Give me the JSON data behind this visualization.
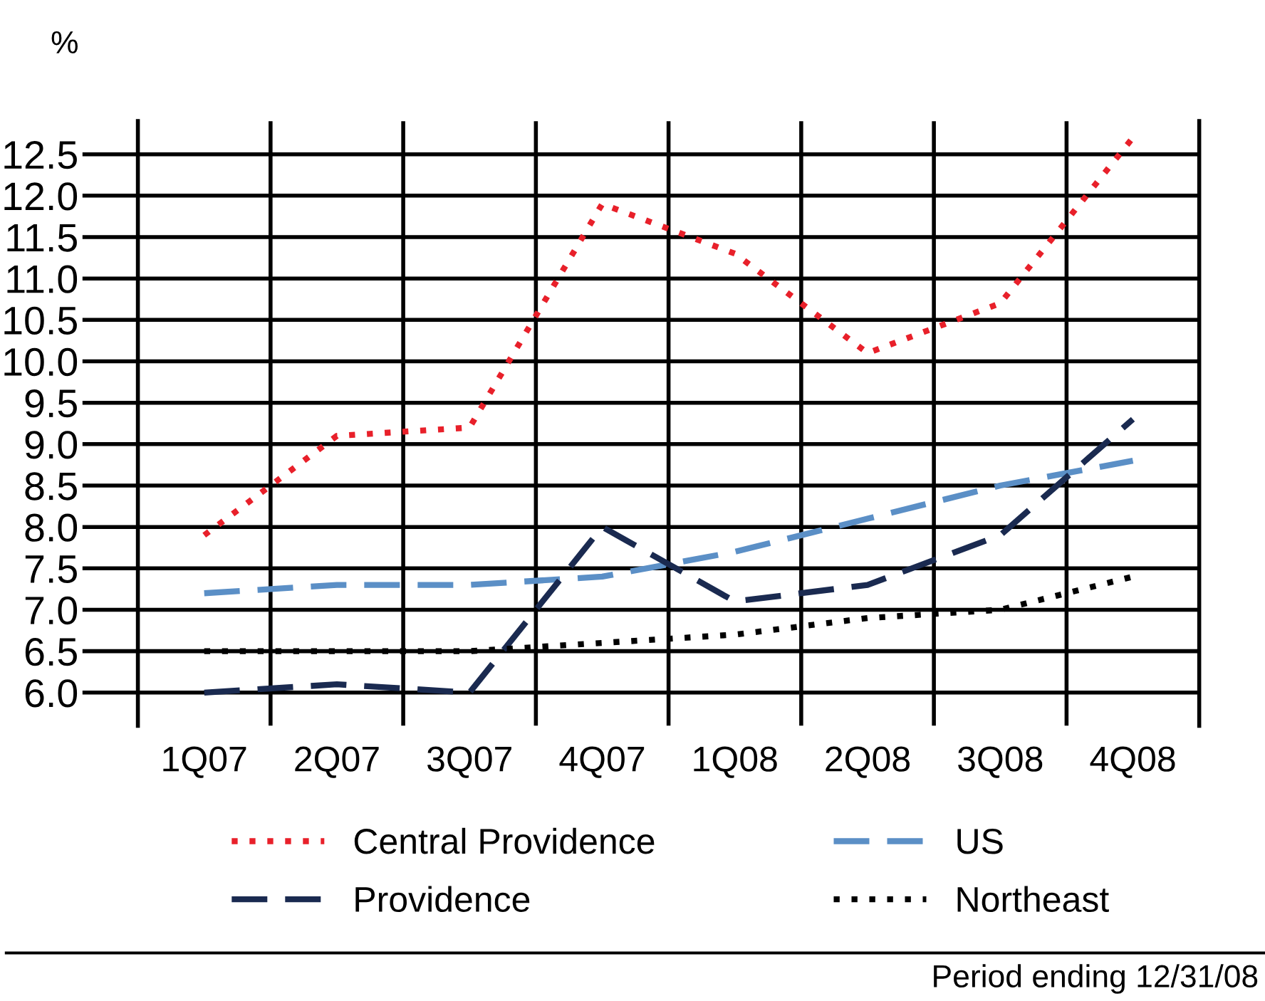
{
  "chart_data": {
    "type": "line",
    "ylabel": "%",
    "categories": [
      "1Q07",
      "2Q07",
      "3Q07",
      "4Q07",
      "1Q08",
      "2Q08",
      "3Q08",
      "4Q08"
    ],
    "series": [
      {
        "name": "Central Providence",
        "color": "#e8202a",
        "line_style": "dotted",
        "values": [
          7.9,
          9.1,
          9.2,
          11.9,
          11.3,
          10.1,
          10.7,
          12.7
        ]
      },
      {
        "name": "US",
        "color": "#5b8fc6",
        "line_style": "dashed",
        "values": [
          7.2,
          7.3,
          7.3,
          7.4,
          7.7,
          8.1,
          8.5,
          8.8
        ]
      },
      {
        "name": "Providence",
        "color": "#1a2a50",
        "line_style": "dashed",
        "values": [
          6.0,
          6.1,
          6.0,
          8.0,
          7.1,
          7.3,
          7.9,
          9.3
        ]
      },
      {
        "name": "Northeast",
        "color": "#000000",
        "line_style": "dotted",
        "values": [
          6.5,
          6.5,
          6.5,
          6.6,
          6.7,
          6.9,
          7.0,
          7.4
        ]
      }
    ],
    "ylim": [
      5.6,
      12.9
    ],
    "yticks": [
      {
        "value": 6,
        "label": "6.0"
      },
      6.5,
      {
        "value": 7,
        "label": "7.0"
      },
      7.5,
      {
        "value": 8,
        "label": "8.0"
      },
      8.5,
      {
        "value": 9,
        "label": "9.0"
      },
      9.5,
      {
        "value": 10,
        "label": "10.0"
      },
      10.5,
      {
        "value": 11,
        "label": "11.0"
      },
      11.5,
      {
        "value": 12,
        "label": "12.0"
      },
      12.5
    ],
    "grid": true,
    "legend": "bottom",
    "marker": "none",
    "annotations": [
      "Period ending 12/31/08"
    ]
  }
}
